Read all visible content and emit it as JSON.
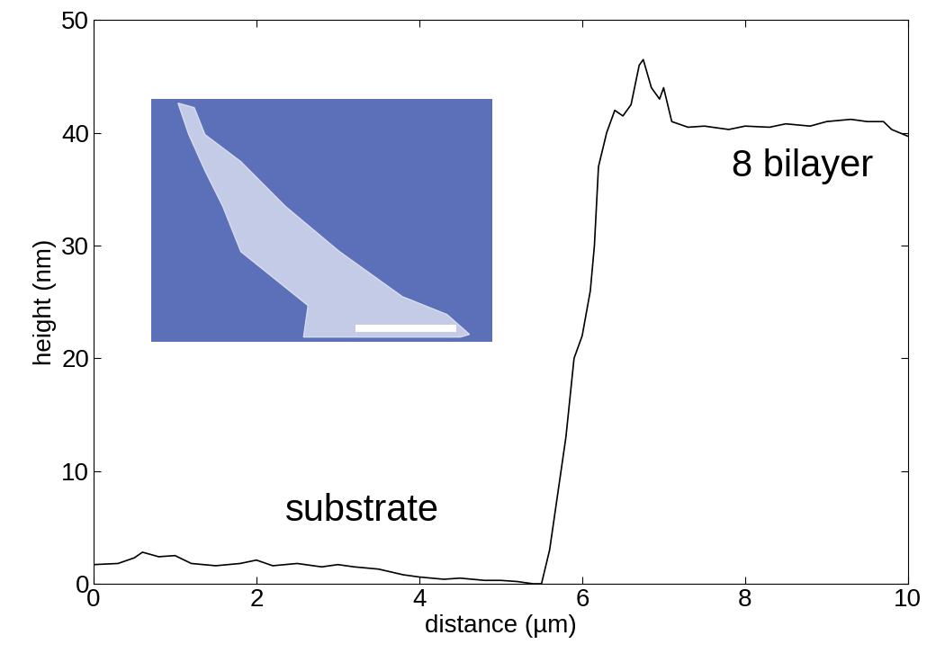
{
  "chart_data": {
    "type": "line",
    "x_label": "distance (µm)",
    "y_label": "height (nm)",
    "annotations": [
      "substrate",
      "8 bilayer"
    ],
    "x": [
      0,
      0.3,
      0.5,
      0.6,
      0.8,
      1.0,
      1.2,
      1.5,
      1.8,
      2.0,
      2.2,
      2.5,
      2.8,
      3.0,
      3.2,
      3.5,
      3.8,
      4.0,
      4.3,
      4.5,
      4.8,
      5.0,
      5.2,
      5.4,
      5.5,
      5.6,
      5.7,
      5.8,
      5.9,
      6.0,
      6.1,
      6.15,
      6.2,
      6.3,
      6.4,
      6.5,
      6.6,
      6.7,
      6.75,
      6.85,
      6.95,
      7.0,
      7.1,
      7.3,
      7.5,
      7.8,
      8.0,
      8.3,
      8.5,
      8.8,
      9.0,
      9.3,
      9.5,
      9.7,
      9.8,
      10.0
    ],
    "values": [
      1.7,
      1.8,
      2.3,
      2.8,
      2.4,
      2.5,
      1.8,
      1.6,
      1.8,
      2.1,
      1.6,
      1.8,
      1.5,
      1.7,
      1.5,
      1.3,
      0.8,
      0.6,
      0.4,
      0.5,
      0.3,
      0.3,
      0.2,
      0.0,
      0.0,
      3.0,
      8.0,
      13.0,
      20.0,
      22.0,
      26.0,
      30.0,
      37.0,
      40.0,
      42.0,
      41.5,
      42.5,
      46.0,
      46.5,
      44.0,
      43.0,
      44.0,
      41.0,
      40.5,
      40.6,
      40.3,
      40.6,
      40.5,
      40.8,
      40.6,
      41.0,
      41.2,
      41.0,
      41.0,
      40.3,
      39.7
    ],
    "color": "#000000",
    "xlim": [
      0,
      10
    ],
    "ylim": [
      0,
      50
    ],
    "xticks": [
      0,
      2,
      4,
      6,
      8,
      10
    ],
    "yticks": [
      0,
      10,
      20,
      30,
      40,
      50
    ],
    "grid": false
  }
}
